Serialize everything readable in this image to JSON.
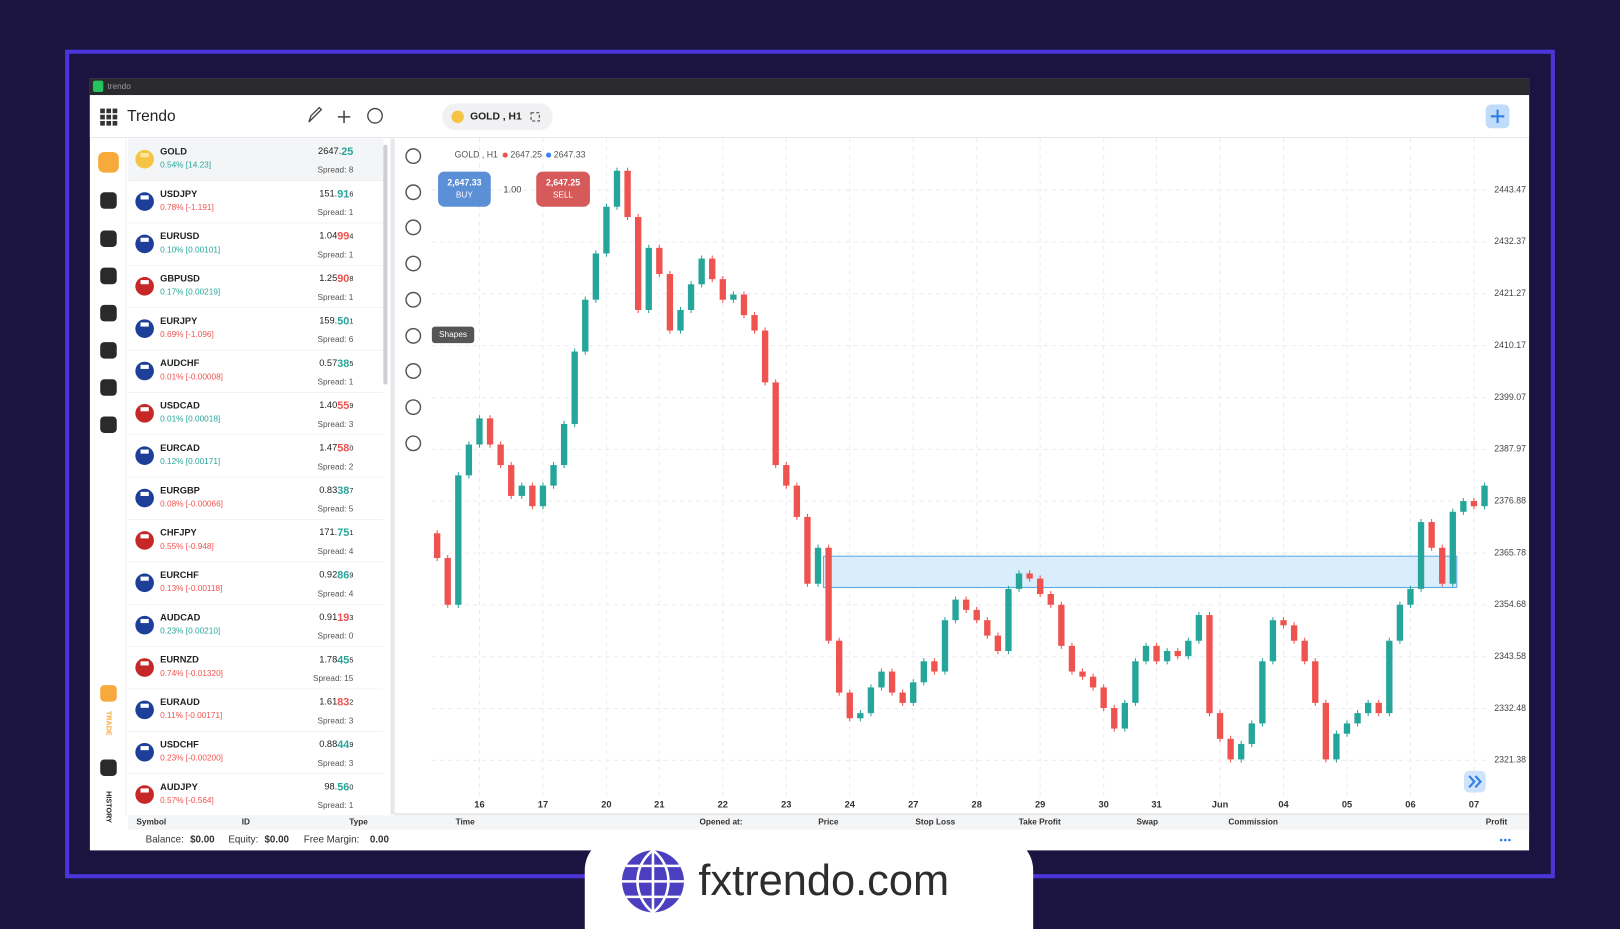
{
  "window_title": "trendo",
  "app_name": "Trendo",
  "symbol_tab": "GOLD , H1",
  "sidebar": {
    "trade": "TRADE",
    "history": "HISTORY"
  },
  "watchlist": [
    {
      "symbol": "GOLD",
      "change": "0.54% [14.23]",
      "change_dir": "up",
      "price": [
        "2647.",
        "25"
      ],
      "price_dir": "up",
      "spread": "Spread: 8"
    },
    {
      "symbol": "USDJPY",
      "change": "0.78% [-1.191]",
      "change_dir": "down",
      "price": [
        "151.",
        "91",
        "6"
      ],
      "price_dir": "up",
      "spread": "Spread: 1"
    },
    {
      "symbol": "EURUSD",
      "change": "0.10% [0.00101]",
      "change_dir": "up",
      "price": [
        "1.04",
        "99",
        "4"
      ],
      "price_dir": "down",
      "spread": "Spread: 1"
    },
    {
      "symbol": "GBPUSD",
      "change": "0.17% [0.00219]",
      "change_dir": "up",
      "price": [
        "1.25",
        "90",
        "8"
      ],
      "price_dir": "down",
      "spread": "Spread: 1"
    },
    {
      "symbol": "EURJPY",
      "change": "0.69% [-1.096]",
      "change_dir": "down",
      "price": [
        "159.",
        "50",
        "1"
      ],
      "price_dir": "up",
      "spread": "Spread: 6"
    },
    {
      "symbol": "AUDCHF",
      "change": "0.01% [-0.00008]",
      "change_dir": "down",
      "price": [
        "0.57",
        "38",
        "5"
      ],
      "price_dir": "up",
      "spread": "Spread: 1"
    },
    {
      "symbol": "USDCAD",
      "change": "0.01% [0.00018]",
      "change_dir": "up",
      "price": [
        "1.40",
        "55",
        "9"
      ],
      "price_dir": "down",
      "spread": "Spread: 3"
    },
    {
      "symbol": "EURCAD",
      "change": "0.12% [0.00171]",
      "change_dir": "up",
      "price": [
        "1.47",
        "58",
        "0"
      ],
      "price_dir": "down",
      "spread": "Spread: 2"
    },
    {
      "symbol": "EURGBP",
      "change": "0.08% [-0.00066]",
      "change_dir": "down",
      "price": [
        "0.83",
        "38",
        "7"
      ],
      "price_dir": "up",
      "spread": "Spread: 5"
    },
    {
      "symbol": "CHFJPY",
      "change": "0.55% [-0.948]",
      "change_dir": "down",
      "price": [
        "171.",
        "75",
        "1"
      ],
      "price_dir": "up",
      "spread": "Spread: 4"
    },
    {
      "symbol": "EURCHF",
      "change": "0.13% [-0.00118]",
      "change_dir": "down",
      "price": [
        "0.92",
        "86",
        "9"
      ],
      "price_dir": "up",
      "spread": "Spread: 4"
    },
    {
      "symbol": "AUDCAD",
      "change": "0.23% [0.00210]",
      "change_dir": "up",
      "price": [
        "0.91",
        "19",
        "3"
      ],
      "price_dir": "down",
      "spread": "Spread: 0"
    },
    {
      "symbol": "EURNZD",
      "change": "0.74% [-0.01320]",
      "change_dir": "down",
      "price": [
        "1.78",
        "45",
        "5"
      ],
      "price_dir": "up",
      "spread": "Spread: 15"
    },
    {
      "symbol": "EURAUD",
      "change": "0.11% [-0.00171]",
      "change_dir": "down",
      "price": [
        "1.61",
        "83",
        "2"
      ],
      "price_dir": "down",
      "spread": "Spread: 3"
    },
    {
      "symbol": "USDCHF",
      "change": "0.23% [-0.00200]",
      "change_dir": "down",
      "price": [
        "0.88",
        "44",
        "9"
      ],
      "price_dir": "up",
      "spread": "Spread: 3"
    },
    {
      "symbol": "AUDJPY",
      "change": "0.57% [-0.564]",
      "change_dir": "down",
      "price": [
        "98.",
        "56",
        "0"
      ],
      "price_dir": "up",
      "spread": "Spread: 1"
    }
  ],
  "chart_data": {
    "type": "candlestick",
    "symbol": "GOLD , H1",
    "bid": "2647.25",
    "ask": "2647.33",
    "buy": {
      "price": "2,647.33",
      "label": "BUY"
    },
    "lot": "1.00",
    "sell": {
      "price": "2,647.25",
      "label": "SELL"
    },
    "tooltip": "Shapes",
    "categories": [
      null,
      null,
      null,
      null,
      "16",
      null,
      null,
      null,
      null,
      null,
      "17",
      null,
      null,
      null,
      null,
      null,
      "20",
      null,
      null,
      null,
      null,
      "21",
      null,
      null,
      null,
      null,
      null,
      "22",
      null,
      null,
      null,
      null,
      null,
      "23",
      null,
      null,
      null,
      null,
      null,
      "24",
      null,
      null,
      null,
      null,
      null,
      "27",
      null,
      null,
      null,
      null,
      null,
      "28",
      null,
      null,
      null,
      null,
      null,
      "29",
      null,
      null,
      null,
      null,
      null,
      "30",
      null,
      null,
      null,
      null,
      "31",
      null,
      null,
      null,
      null,
      null,
      "Jun",
      null,
      null,
      null,
      null,
      null,
      "04",
      null,
      null,
      null,
      null,
      null,
      "05",
      null,
      null,
      null,
      null,
      null,
      "06",
      null,
      null,
      null,
      null,
      null,
      "07",
      null
    ],
    "open": 2370.0,
    "close": [
      2364.7,
      2354.7,
      2382.4,
      2389.0,
      2394.6,
      2389.0,
      2384.6,
      2378.0,
      2380.2,
      2375.8,
      2380.2,
      2384.6,
      2393.4,
      2408.9,
      2420.0,
      2429.9,
      2439.9,
      2447.6,
      2437.7,
      2417.8,
      2431.1,
      2425.5,
      2413.4,
      2417.8,
      2423.3,
      2428.8,
      2424.4,
      2420.0,
      2421.1,
      2416.7,
      2413.4,
      2402.3,
      2384.6,
      2380.2,
      2373.5,
      2359.2,
      2366.9,
      2347.0,
      2335.9,
      2330.4,
      2331.5,
      2337.0,
      2340.4,
      2335.9,
      2333.7,
      2338.1,
      2342.6,
      2340.4,
      2351.4,
      2355.8,
      2353.6,
      2351.4,
      2348.1,
      2344.8,
      2358.1,
      2361.4,
      2360.3,
      2357.0,
      2354.7,
      2345.9,
      2340.4,
      2339.3,
      2337.0,
      2332.6,
      2328.2,
      2333.7,
      2342.6,
      2345.9,
      2342.6,
      2344.8,
      2343.7,
      2347.0,
      2352.5,
      2331.5,
      2326.0,
      2321.6,
      2324.9,
      2329.3,
      2342.6,
      2351.4,
      2350.3,
      2347.0,
      2342.6,
      2333.7,
      2321.6,
      2327.1,
      2329.3,
      2331.5,
      2333.7,
      2331.5,
      2347.0,
      2354.7,
      2358.1,
      2372.4,
      2366.9,
      2359.2,
      2374.6,
      2376.9,
      2375.8,
      2380.2
    ],
    "up_color": "#26a69a",
    "down_color": "#ef5350",
    "zone": {
      "low": 2358.4,
      "high": 2365.1,
      "color": "#cfe8fa"
    },
    "ylim": [
      2313.4,
      2454.5
    ],
    "yticks": [
      2443.47,
      2432.37,
      2421.27,
      2410.17,
      2399.07,
      2387.97,
      2376.88,
      2365.78,
      2354.68,
      2343.58,
      2332.48,
      2321.38
    ],
    "grid": true
  },
  "positions_table": {
    "columns": [
      "Symbol",
      "ID",
      "Type",
      "Time",
      "Opened at:",
      "Price",
      "Stop Loss",
      "Take Profit",
      "Swap",
      "Commission",
      "Profit"
    ]
  },
  "account": {
    "balance_label": "Balance:",
    "balance": "$0.00",
    "equity_label": "Equity:",
    "equity": "$0.00",
    "free_margin_label": "Free Margin:",
    "free_margin": "0.00"
  },
  "brand": "fxtrendo.com"
}
